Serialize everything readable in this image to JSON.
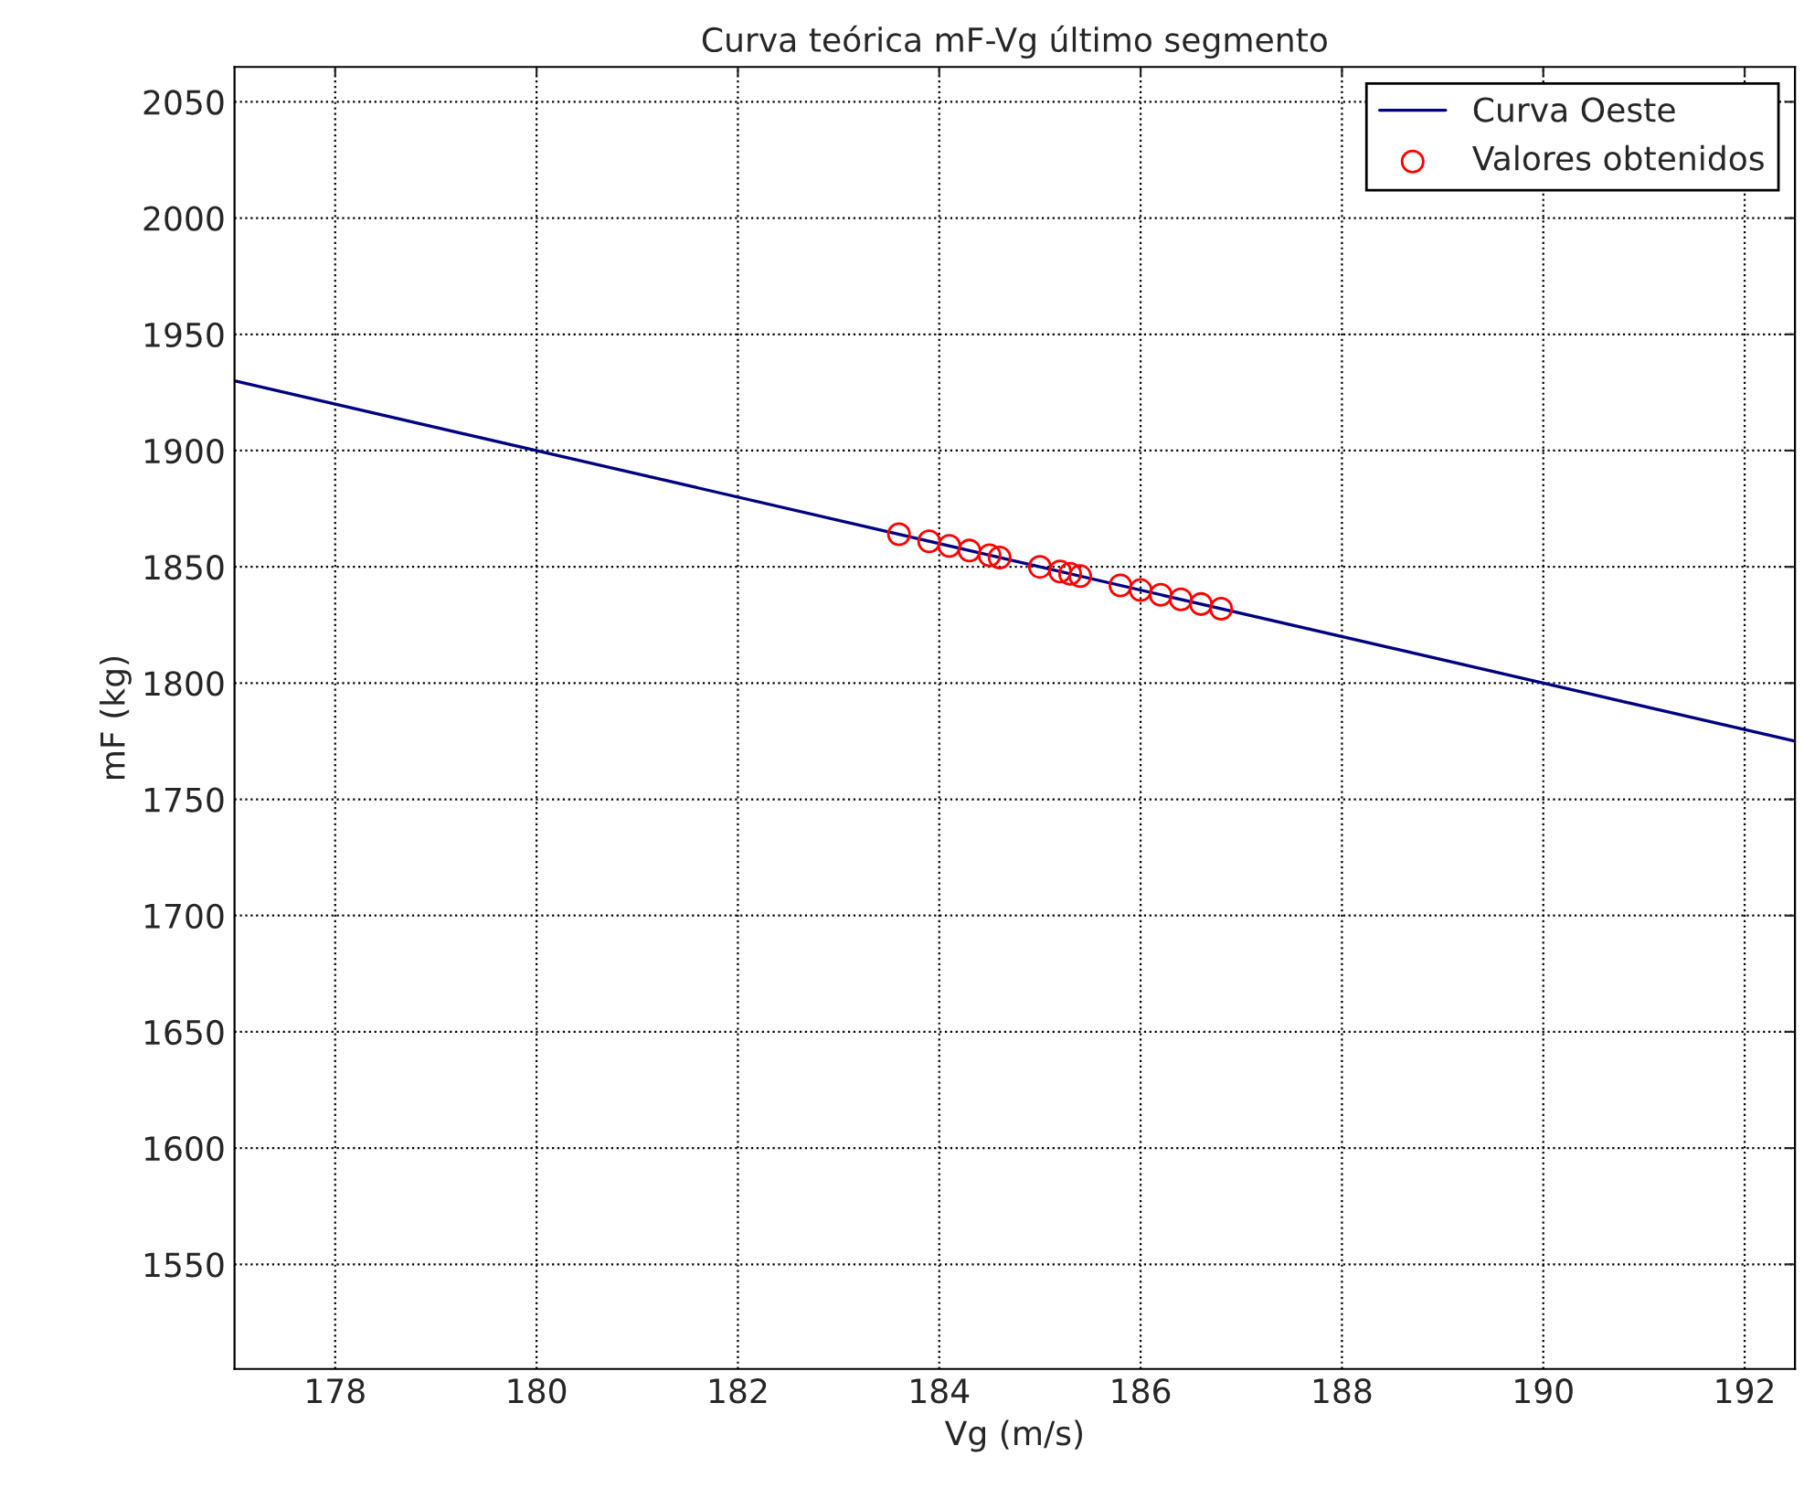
{
  "chart_data": {
    "type": "line",
    "title": "Curva teórica mF-Vg último segmento",
    "xlabel": "Vg (m/s)",
    "ylabel": "mF (kg)",
    "xlim": [
      177,
      192.5
    ],
    "ylim": [
      1505,
      2065
    ],
    "xticks": [
      178,
      180,
      182,
      184,
      186,
      188,
      190,
      192
    ],
    "yticks": [
      1550,
      1600,
      1650,
      1700,
      1750,
      1800,
      1850,
      1900,
      1950,
      2000,
      2050
    ],
    "grid": true,
    "legend": "top right",
    "series": [
      {
        "name": "Curva Oeste",
        "color": "#000080",
        "line_style": "solid",
        "marker": "none",
        "x": [
          177,
          192.5
        ],
        "values": [
          1930,
          1775
        ]
      },
      {
        "name": "Valores obtenidos",
        "type": "scatter",
        "color": "#ff0000",
        "marker": "circle",
        "x": [
          183.6,
          183.9,
          184.1,
          184.3,
          184.5,
          184.6,
          185.0,
          185.2,
          185.3,
          185.4,
          185.8,
          186.0,
          186.2,
          186.4,
          186.6,
          186.8
        ],
        "values": [
          1864,
          1861,
          1859,
          1857,
          1855,
          1854,
          1850,
          1848,
          1847,
          1846,
          1842,
          1840,
          1838,
          1836,
          1834,
          1832
        ]
      }
    ]
  }
}
